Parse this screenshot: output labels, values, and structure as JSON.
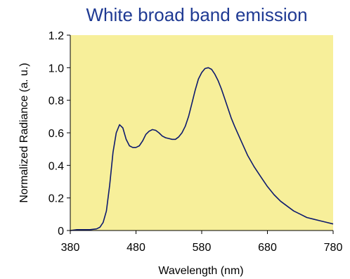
{
  "chart_data": {
    "type": "line",
    "title": "White broad band emission",
    "xlabel": "Wavelength (nm)",
    "ylabel": "Normalized Radiance (a. u.)",
    "xlim": [
      380,
      780
    ],
    "ylim": [
      0,
      1.2
    ],
    "xticks": [
      "380",
      "480",
      "580",
      "680",
      "780"
    ],
    "yticks": [
      "0",
      "0.2",
      "0.4",
      "0.6",
      "0.8",
      "1.0",
      "1.2"
    ],
    "grid": false,
    "legend": "none",
    "colors": {
      "plot_background": "#f7ef9a",
      "line": "#0d1a6e",
      "title": "#1f3a93"
    },
    "series": [
      {
        "x": [
          380,
          390,
          400,
          410,
          420,
          425,
          430,
          435,
          440,
          445,
          450,
          455,
          460,
          465,
          470,
          475,
          480,
          485,
          490,
          495,
          500,
          505,
          510,
          515,
          520,
          525,
          530,
          535,
          540,
          545,
          550,
          555,
          560,
          565,
          570,
          575,
          580,
          585,
          590,
          595,
          600,
          605,
          610,
          615,
          620,
          625,
          630,
          640,
          650,
          660,
          670,
          680,
          690,
          700,
          710,
          720,
          730,
          740,
          750,
          760,
          770,
          780
        ],
        "y": [
          0.0,
          0.005,
          0.005,
          0.005,
          0.01,
          0.02,
          0.05,
          0.12,
          0.28,
          0.48,
          0.6,
          0.65,
          0.63,
          0.56,
          0.52,
          0.51,
          0.51,
          0.52,
          0.55,
          0.59,
          0.61,
          0.62,
          0.615,
          0.6,
          0.58,
          0.57,
          0.565,
          0.56,
          0.56,
          0.575,
          0.6,
          0.64,
          0.7,
          0.78,
          0.86,
          0.93,
          0.97,
          0.995,
          1.0,
          0.99,
          0.96,
          0.92,
          0.87,
          0.81,
          0.75,
          0.69,
          0.64,
          0.55,
          0.46,
          0.39,
          0.33,
          0.27,
          0.22,
          0.18,
          0.15,
          0.12,
          0.1,
          0.08,
          0.07,
          0.06,
          0.05,
          0.04
        ]
      }
    ]
  }
}
